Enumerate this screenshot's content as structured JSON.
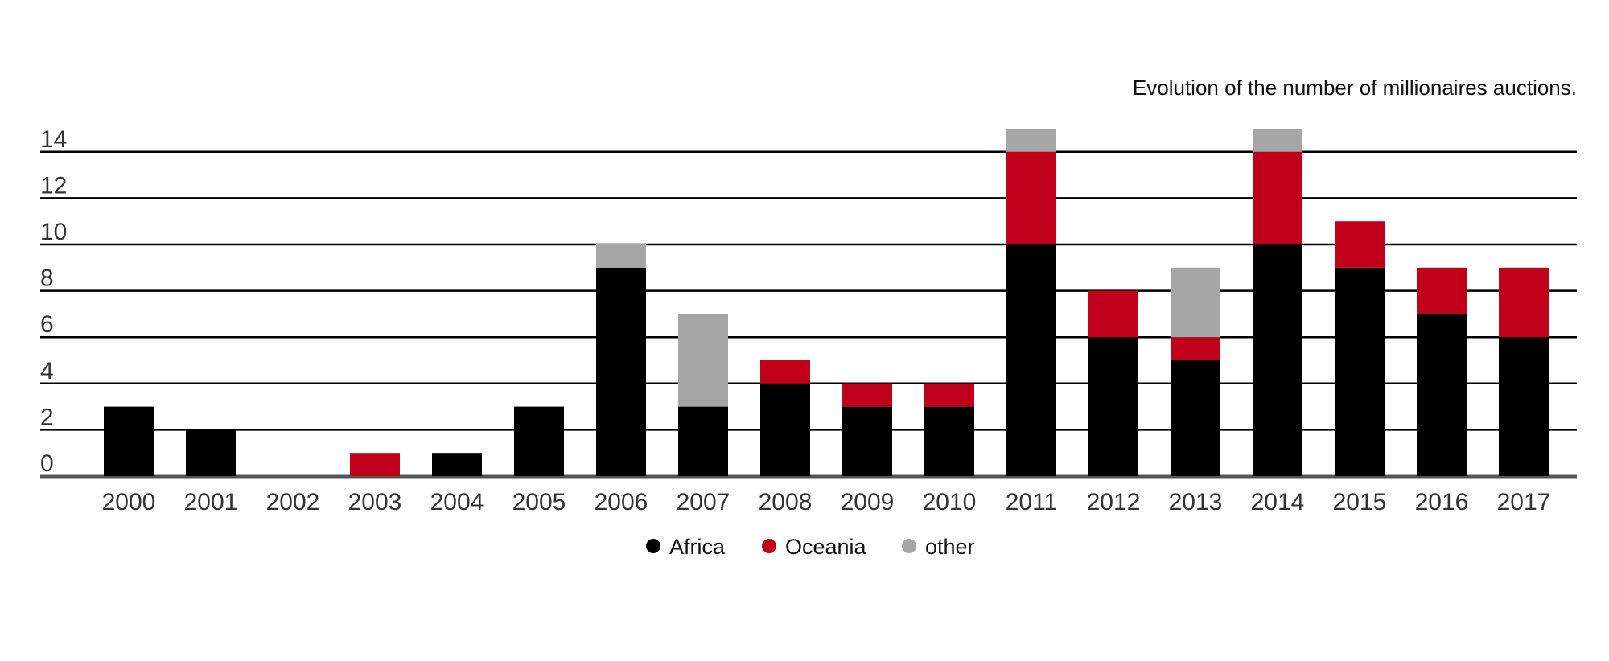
{
  "chart_data": {
    "type": "bar",
    "stacked": true,
    "title": "Evolution of the number of millionaires auctions.",
    "xlabel": "",
    "ylabel": "",
    "ylim": [
      0,
      15
    ],
    "yticks": [
      0,
      2,
      4,
      6,
      8,
      10,
      12,
      14
    ],
    "grid": true,
    "legend_position": "bottom-center",
    "categories": [
      "2000",
      "2001",
      "2002",
      "2003",
      "2004",
      "2005",
      "2006",
      "2007",
      "2008",
      "2009",
      "2010",
      "2011",
      "2012",
      "2013",
      "2014",
      "2015",
      "2016",
      "2017"
    ],
    "series": [
      {
        "name": "Africa",
        "color": "#000000",
        "values": [
          3,
          2,
          0,
          0,
          1,
          3,
          9,
          3,
          4,
          3,
          3,
          10,
          6,
          5,
          10,
          9,
          7,
          6
        ]
      },
      {
        "name": "Oceania",
        "color": "#c0001a",
        "values": [
          0,
          0,
          0,
          1,
          0,
          0,
          0,
          0,
          1,
          1,
          1,
          4,
          2,
          1,
          4,
          2,
          2,
          3
        ]
      },
      {
        "name": "other",
        "color": "#a6a6a6",
        "values": [
          0,
          0,
          0,
          0,
          0,
          0,
          1,
          4,
          0,
          0,
          0,
          1,
          0,
          3,
          1,
          0,
          0,
          0
        ]
      }
    ]
  }
}
